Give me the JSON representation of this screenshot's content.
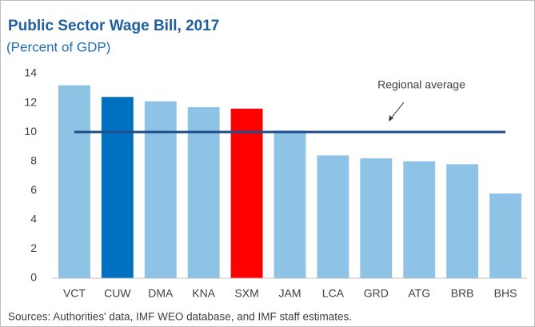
{
  "chart_data": {
    "type": "bar",
    "title": "Public Sector Wage Bill, 2017",
    "subtitle": "(Percent of GDP)",
    "categories": [
      "VCT",
      "CUW",
      "DMA",
      "KNA",
      "SXM",
      "JAM",
      "LCA",
      "GRD",
      "ATG",
      "BRB",
      "BHS"
    ],
    "values": [
      13.2,
      12.4,
      12.1,
      11.7,
      11.6,
      10.1,
      8.4,
      8.2,
      8.0,
      7.8,
      5.8
    ],
    "colors": [
      "#8ec3e6",
      "#0070c0",
      "#8ec3e6",
      "#8ec3e6",
      "#ff0000",
      "#8ec3e6",
      "#8ec3e6",
      "#8ec3e6",
      "#8ec3e6",
      "#8ec3e6",
      "#8ec3e6"
    ],
    "reference_line": {
      "label": "Regional average",
      "value": 10,
      "color": "#1f4e8c"
    },
    "ylim": [
      0,
      14
    ],
    "yticks": [
      0,
      2,
      4,
      6,
      8,
      10,
      12,
      14
    ],
    "grid": false,
    "source": "Sources: Authorities' data, IMF WEO database, and IMF staff estimates."
  }
}
